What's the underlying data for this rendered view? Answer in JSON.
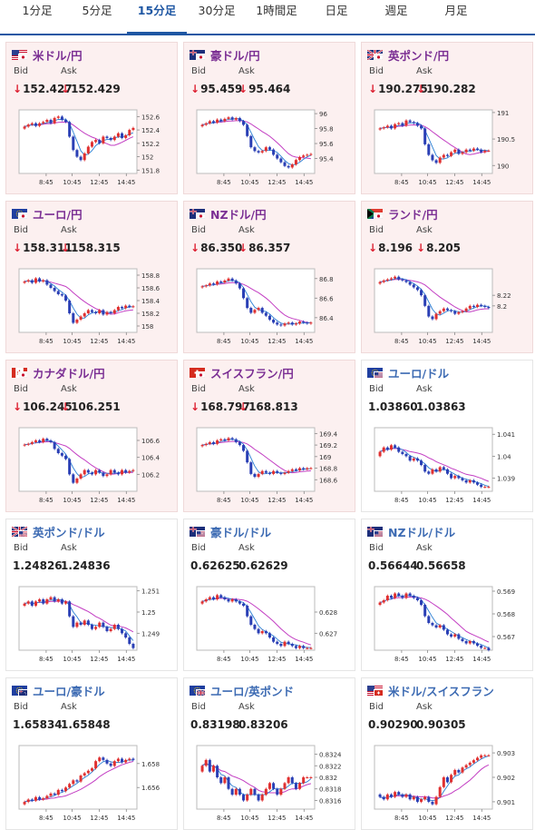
{
  "tabs": [
    {
      "label": "1分足",
      "active": false
    },
    {
      "label": "5分足",
      "active": false
    },
    {
      "label": "15分足",
      "active": true
    },
    {
      "label": "30分足",
      "active": false
    },
    {
      "label": "1時間足",
      "active": false
    },
    {
      "label": "日足",
      "active": false
    },
    {
      "label": "週足",
      "active": false
    },
    {
      "label": "月足",
      "active": false
    }
  ],
  "colors": {
    "accent": "#1f57a3",
    "down": "#d32f2f",
    "up_candle": "#e03030",
    "down_candle": "#2a3fb5",
    "ma_fast": "#2a7fd4",
    "ma_slow": "#c33fc3",
    "down_bg": "#fcf0f0"
  },
  "common": {
    "bid_label": "Bid",
    "ask_label": "Ask",
    "x_ticks": [
      "8:45",
      "10:45",
      "12:45",
      "14:45"
    ]
  },
  "cards": [
    {
      "pair": "米ドル/円",
      "flag": "us-jp",
      "down": true,
      "bid": "152.427",
      "ask": "152.429",
      "bid_down": true,
      "ask_down": true,
      "chart_data": {
        "type": "candlestick",
        "ylim": [
          151.75,
          152.7
        ],
        "yticks": [
          "152.6",
          "152.4",
          "152.2",
          "152",
          "151.8"
        ],
        "ytick_values": [
          152.6,
          152.4,
          152.2,
          152,
          151.8
        ],
        "close": [
          152.45,
          152.48,
          152.5,
          152.46,
          152.5,
          152.52,
          152.55,
          152.5,
          152.58,
          152.6,
          152.55,
          152.52,
          152.3,
          152.1,
          152.0,
          151.95,
          152.05,
          152.15,
          152.22,
          152.25,
          152.2,
          152.3,
          152.28,
          152.25,
          152.3,
          152.35,
          152.28,
          152.32,
          152.4,
          152.43
        ]
      }
    },
    {
      "pair": "豪ドル/円",
      "flag": "au-jp",
      "down": true,
      "bid": "95.459",
      "ask": "95.464",
      "bid_down": true,
      "ask_down": true,
      "chart_data": {
        "type": "candlestick",
        "ylim": [
          95.2,
          96.05
        ],
        "yticks": [
          "96",
          "95.8",
          "95.6",
          "95.4"
        ],
        "ytick_values": [
          96,
          95.8,
          95.6,
          95.4
        ],
        "close": [
          95.85,
          95.87,
          95.9,
          95.88,
          95.92,
          95.9,
          95.93,
          95.95,
          95.92,
          95.94,
          95.9,
          95.85,
          95.7,
          95.55,
          95.5,
          95.48,
          95.5,
          95.55,
          95.52,
          95.45,
          95.4,
          95.35,
          95.3,
          95.28,
          95.32,
          95.38,
          95.42,
          95.44,
          95.45,
          95.46
        ]
      }
    },
    {
      "pair": "英ポンド/円",
      "flag": "gb-jp",
      "down": true,
      "bid": "190.275",
      "ask": "190.282",
      "bid_down": true,
      "ask_down": true,
      "chart_data": {
        "type": "candlestick",
        "ylim": [
          189.85,
          191.05
        ],
        "yticks": [
          "191",
          "190.5",
          "190"
        ],
        "ytick_values": [
          191,
          190.5,
          190
        ],
        "close": [
          190.7,
          190.72,
          190.75,
          190.7,
          190.78,
          190.8,
          190.75,
          190.85,
          190.82,
          190.8,
          190.75,
          190.7,
          190.4,
          190.2,
          190.1,
          190.05,
          190.15,
          190.2,
          190.18,
          190.25,
          190.3,
          190.22,
          190.25,
          190.3,
          190.28,
          190.32,
          190.3,
          190.25,
          190.28,
          190.28
        ]
      }
    },
    {
      "pair": "ユーロ/円",
      "flag": "eu-jp",
      "down": true,
      "bid": "158.311",
      "ask": "158.315",
      "bid_down": true,
      "ask_down": true,
      "chart_data": {
        "type": "candlestick",
        "ylim": [
          157.9,
          158.9
        ],
        "yticks": [
          "158.8",
          "158.6",
          "158.4",
          "158.2",
          "158"
        ],
        "ytick_values": [
          158.8,
          158.6,
          158.4,
          158.2,
          158
        ],
        "close": [
          158.7,
          158.72,
          158.68,
          158.75,
          158.7,
          158.72,
          158.65,
          158.6,
          158.55,
          158.5,
          158.48,
          158.4,
          158.2,
          158.05,
          158.1,
          158.15,
          158.2,
          158.25,
          158.22,
          158.2,
          158.25,
          158.18,
          158.22,
          158.2,
          158.25,
          158.3,
          158.28,
          158.32,
          158.3,
          158.31
        ]
      }
    },
    {
      "pair": "NZドル/円",
      "flag": "nz-jp",
      "down": true,
      "bid": "86.350",
      "ask": "86.357",
      "bid_down": true,
      "ask_down": true,
      "chart_data": {
        "type": "candlestick",
        "ylim": [
          86.25,
          86.9
        ],
        "yticks": [
          "86.8",
          "86.6",
          "86.4"
        ],
        "ytick_values": [
          86.8,
          86.6,
          86.4
        ],
        "close": [
          86.72,
          86.73,
          86.75,
          86.74,
          86.77,
          86.76,
          86.78,
          86.8,
          86.78,
          86.75,
          86.7,
          86.6,
          86.5,
          86.45,
          86.48,
          86.5,
          86.45,
          86.42,
          86.38,
          86.35,
          86.33,
          86.32,
          86.34,
          86.35,
          86.33,
          86.34,
          86.36,
          86.35,
          86.34,
          86.35
        ]
      }
    },
    {
      "pair": "ランド/円",
      "flag": "za-jp",
      "down": true,
      "bid": "8.196",
      "ask": "8.205",
      "bid_down": true,
      "ask_down": true,
      "chart_data": {
        "type": "candlestick",
        "ylim": [
          8.15,
          8.27
        ],
        "yticks": [
          "8.22",
          "8.2"
        ],
        "ytick_values": [
          8.22,
          8.2
        ],
        "close": [
          8.245,
          8.248,
          8.25,
          8.252,
          8.255,
          8.25,
          8.248,
          8.245,
          8.24,
          8.235,
          8.23,
          8.22,
          8.2,
          8.18,
          8.175,
          8.185,
          8.19,
          8.195,
          8.192,
          8.19,
          8.185,
          8.188,
          8.19,
          8.195,
          8.2,
          8.198,
          8.202,
          8.2,
          8.198,
          8.196
        ]
      }
    },
    {
      "pair": "カナダドル/円",
      "flag": "ca-jp",
      "down": true,
      "bid": "106.245",
      "ask": "106.251",
      "bid_down": true,
      "ask_down": true,
      "chart_data": {
        "type": "candlestick",
        "ylim": [
          106.0,
          106.75
        ],
        "yticks": [
          "106.6",
          "106.4",
          "106.2"
        ],
        "ytick_values": [
          106.6,
          106.4,
          106.2
        ],
        "close": [
          106.55,
          106.56,
          106.58,
          106.6,
          106.58,
          106.62,
          106.6,
          106.58,
          106.5,
          106.45,
          106.42,
          106.38,
          106.2,
          106.1,
          106.15,
          106.2,
          106.25,
          106.22,
          106.2,
          106.25,
          106.22,
          106.18,
          106.2,
          106.25,
          106.22,
          106.2,
          106.25,
          106.22,
          106.24,
          106.25
        ]
      }
    },
    {
      "pair": "スイスフラン/円",
      "flag": "ch-jp",
      "down": true,
      "bid": "168.797",
      "ask": "168.813",
      "bid_down": true,
      "ask_down": true,
      "chart_data": {
        "type": "candlestick",
        "ylim": [
          168.4,
          169.5
        ],
        "yticks": [
          "169.4",
          "169.2",
          "169",
          "168.8",
          "168.6"
        ],
        "ytick_values": [
          169.4,
          169.2,
          169,
          168.8,
          168.6
        ],
        "close": [
          169.2,
          169.22,
          169.25,
          169.22,
          169.28,
          169.3,
          169.28,
          169.32,
          169.3,
          169.25,
          169.2,
          169.1,
          168.9,
          168.7,
          168.65,
          168.7,
          168.75,
          168.72,
          168.7,
          168.75,
          168.72,
          168.7,
          168.72,
          168.75,
          168.78,
          168.76,
          168.8,
          168.78,
          168.8,
          168.8
        ]
      }
    },
    {
      "pair": "ユーロ/ドル",
      "flag": "eu-us",
      "down": false,
      "bid": "1.03860",
      "ask": "1.03863",
      "bid_down": false,
      "ask_down": false,
      "chart_data": {
        "type": "candlestick",
        "ylim": [
          1.0384,
          1.0413
        ],
        "yticks": [
          "1.041",
          "1.04",
          "1.039"
        ],
        "ytick_values": [
          1.041,
          1.04,
          1.039
        ],
        "close": [
          1.0402,
          1.0404,
          1.0403,
          1.0405,
          1.0404,
          1.0402,
          1.0401,
          1.04,
          1.0398,
          1.0399,
          1.0398,
          1.0396,
          1.0393,
          1.0392,
          1.0394,
          1.0393,
          1.0395,
          1.0394,
          1.0392,
          1.039,
          1.0391,
          1.039,
          1.0389,
          1.0388,
          1.0389,
          1.0388,
          1.0387,
          1.0386,
          1.0386,
          1.0386
        ]
      }
    },
    {
      "pair": "英ポンド/ドル",
      "flag": "gb-us",
      "down": false,
      "bid": "1.24826",
      "ask": "1.24836",
      "bid_down": false,
      "ask_down": false,
      "chart_data": {
        "type": "candlestick",
        "ylim": [
          1.2482,
          1.2512
        ],
        "yticks": [
          "1.251",
          "1.25",
          "1.249"
        ],
        "ytick_values": [
          1.251,
          1.25,
          1.249
        ],
        "close": [
          1.2504,
          1.2505,
          1.2503,
          1.2505,
          1.2506,
          1.2504,
          1.2506,
          1.2507,
          1.2505,
          1.2506,
          1.2504,
          1.2505,
          1.2498,
          1.2493,
          1.2495,
          1.2494,
          1.2496,
          1.2494,
          1.2492,
          1.2493,
          1.2495,
          1.2493,
          1.2491,
          1.2492,
          1.2494,
          1.2492,
          1.249,
          1.2488,
          1.2485,
          1.2483
        ]
      }
    },
    {
      "pair": "豪ドル/ドル",
      "flag": "au-us",
      "down": false,
      "bid": "0.62625",
      "ask": "0.62629",
      "bid_down": false,
      "ask_down": false,
      "chart_data": {
        "type": "candlestick",
        "ylim": [
          0.6262,
          0.6292
        ],
        "yticks": [
          "0.628",
          "0.627"
        ],
        "ytick_values": [
          0.628,
          0.627
        ],
        "close": [
          0.6285,
          0.6286,
          0.6287,
          0.6286,
          0.6288,
          0.6287,
          0.6286,
          0.6285,
          0.6286,
          0.6285,
          0.6284,
          0.6283,
          0.6278,
          0.6274,
          0.6272,
          0.627,
          0.6271,
          0.627,
          0.6268,
          0.6266,
          0.6265,
          0.6264,
          0.6266,
          0.6265,
          0.6264,
          0.6263,
          0.6264,
          0.6263,
          0.6263,
          0.6263
        ]
      }
    },
    {
      "pair": "NZドル/ドル",
      "flag": "nz-us",
      "down": false,
      "bid": "0.56644",
      "ask": "0.56658",
      "bid_down": false,
      "ask_down": false,
      "chart_data": {
        "type": "candlestick",
        "ylim": [
          0.5664,
          0.5692
        ],
        "yticks": [
          "0.569",
          "0.568",
          "0.567"
        ],
        "ytick_values": [
          0.569,
          0.568,
          0.567
        ],
        "close": [
          0.5685,
          0.5686,
          0.5688,
          0.5687,
          0.5689,
          0.5688,
          0.5687,
          0.5689,
          0.5688,
          0.5687,
          0.5686,
          0.5684,
          0.5679,
          0.5676,
          0.5675,
          0.5674,
          0.5675,
          0.5673,
          0.5671,
          0.567,
          0.5671,
          0.5669,
          0.5668,
          0.5667,
          0.5668,
          0.5667,
          0.5666,
          0.5665,
          0.5665,
          0.5664
        ]
      }
    },
    {
      "pair": "ユーロ/豪ドル",
      "flag": "eu-au",
      "down": false,
      "bid": "1.65834",
      "ask": "1.65848",
      "bid_down": false,
      "ask_down": false,
      "chart_data": {
        "type": "candlestick",
        "ylim": [
          1.6542,
          1.6595
        ],
        "yticks": [
          "1.658",
          "1.656"
        ],
        "ytick_values": [
          1.658,
          1.656
        ],
        "close": [
          1.6548,
          1.655,
          1.6549,
          1.6552,
          1.655,
          1.6551,
          1.6553,
          1.6555,
          1.6554,
          1.6558,
          1.6557,
          1.656,
          1.6563,
          1.6566,
          1.6565,
          1.657,
          1.6572,
          1.6574,
          1.6576,
          1.6582,
          1.6585,
          1.6583,
          1.658,
          1.6578,
          1.6582,
          1.6584,
          1.6581,
          1.6583,
          1.6584,
          1.6583
        ]
      }
    },
    {
      "pair": "ユーロ/英ポンド",
      "flag": "eu-gb",
      "down": false,
      "bid": "0.83198",
      "ask": "0.83206",
      "bid_down": false,
      "ask_down": false,
      "chart_data": {
        "type": "candlestick",
        "ylim": [
          0.83145,
          0.83255
        ],
        "yticks": [
          "0.8324",
          "0.8322",
          "0.832",
          "0.8318",
          "0.8316"
        ],
        "ytick_values": [
          0.8324,
          0.8322,
          0.832,
          0.8318,
          0.8316
        ],
        "close": [
          0.8322,
          0.8323,
          0.8321,
          0.8322,
          0.832,
          0.8319,
          0.832,
          0.8318,
          0.8317,
          0.8318,
          0.8317,
          0.8316,
          0.8317,
          0.8318,
          0.8317,
          0.8316,
          0.8317,
          0.8318,
          0.8319,
          0.8318,
          0.8317,
          0.8318,
          0.8319,
          0.832,
          0.8319,
          0.8318,
          0.8319,
          0.832,
          0.832,
          0.832
        ]
      }
    },
    {
      "pair": "米ドル/スイスフラン",
      "flag": "us-ch",
      "down": false,
      "bid": "0.90290",
      "ask": "0.90305",
      "bid_down": false,
      "ask_down": false,
      "chart_data": {
        "type": "candlestick",
        "ylim": [
          0.9007,
          0.9033
        ],
        "yticks": [
          "0.903",
          "0.902",
          "0.901"
        ],
        "ytick_values": [
          0.903,
          0.902,
          0.901
        ],
        "close": [
          0.9012,
          0.9011,
          0.9013,
          0.9012,
          0.9014,
          0.9013,
          0.9012,
          0.9013,
          0.9011,
          0.9012,
          0.901,
          0.9011,
          0.9012,
          0.901,
          0.9009,
          0.9012,
          0.9016,
          0.902,
          0.9018,
          0.9021,
          0.9023,
          0.9022,
          0.9024,
          0.9025,
          0.9026,
          0.9027,
          0.9028,
          0.9029,
          0.9029,
          0.9029
        ]
      }
    }
  ]
}
